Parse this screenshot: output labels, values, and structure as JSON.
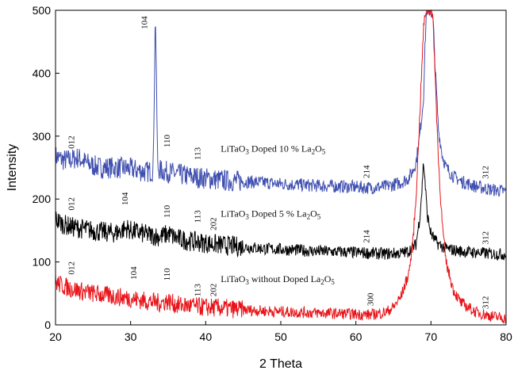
{
  "chart_data": {
    "type": "line",
    "title": "",
    "xlabel": "2 Theta",
    "ylabel": "Intensity",
    "xlim": [
      20,
      80
    ],
    "ylim": [
      0,
      500
    ],
    "xticks": [
      20,
      30,
      40,
      50,
      60,
      70,
      80
    ],
    "yticks": [
      0,
      100,
      200,
      300,
      400,
      500
    ],
    "grid": false,
    "legend": "none",
    "series": [
      {
        "label": {
          "base": "LiTaO",
          "sub1": "3",
          "mid": " Doped 10 % La",
          "sub2": "2",
          "end": "O",
          "sub3": "5"
        },
        "color": "#3f4fb0",
        "x": [
          20,
          21,
          22,
          23,
          24,
          25,
          26,
          28,
          30,
          32,
          33,
          33.3,
          33.6,
          34,
          35,
          36,
          38,
          40,
          42,
          45,
          48,
          50,
          52,
          55,
          58,
          60,
          62,
          64,
          66,
          67,
          67.5,
          68,
          68.5,
          69,
          69.2,
          69.4,
          69.6,
          69.8,
          70,
          70.3,
          70.6,
          71,
          71.5,
          72,
          73,
          74,
          76,
          78,
          80
        ],
        "y": [
          268,
          262,
          262,
          266,
          258,
          253,
          250,
          250,
          248,
          243,
          245,
          500,
          250,
          245,
          243,
          240,
          236,
          233,
          230,
          228,
          226,
          224,
          223,
          221,
          220,
          219,
          218,
          220,
          226,
          233,
          243,
          258,
          300,
          360,
          440,
          500,
          500,
          500,
          500,
          480,
          400,
          310,
          270,
          250,
          236,
          228,
          220,
          215,
          212
        ],
        "peaks": [
          {
            "hkl": "012",
            "x": 22.5,
            "y": 280
          },
          {
            "hkl": "104",
            "x": 32.2,
            "y": 470
          },
          {
            "hkl": "110",
            "x": 35.2,
            "y": 282
          },
          {
            "hkl": "113",
            "x": 39.3,
            "y": 262
          },
          {
            "hkl": "214",
            "x": 61.8,
            "y": 233
          },
          {
            "hkl": "312",
            "x": 77.6,
            "y": 232
          }
        ]
      },
      {
        "label": {
          "base": "LiTaO",
          "sub1": "3",
          "mid": " Doped 5 % La",
          "sub2": "2",
          "end": "O",
          "sub3": "5"
        },
        "color": "#000000",
        "x": [
          20,
          21,
          22,
          23,
          24,
          25,
          26,
          28,
          29.5,
          30,
          32,
          34,
          35,
          36,
          38,
          40,
          42,
          45,
          48,
          50,
          52,
          55,
          58,
          60,
          62,
          64,
          66,
          67,
          68,
          68.5,
          68.8,
          69,
          69.2,
          69.5,
          70,
          70.5,
          71,
          72,
          74,
          76,
          78,
          80
        ],
        "y": [
          168,
          160,
          156,
          154,
          152,
          150,
          148,
          146,
          154,
          150,
          144,
          140,
          145,
          138,
          133,
          130,
          127,
          124,
          121,
          120,
          119,
          117,
          116,
          115,
          114,
          113,
          114,
          117,
          128,
          170,
          215,
          260,
          230,
          175,
          145,
          135,
          128,
          121,
          117,
          115,
          113,
          112
        ],
        "peaks": [
          {
            "hkl": "012",
            "x": 22.5,
            "y": 182
          },
          {
            "hkl": "104",
            "x": 29.6,
            "y": 190
          },
          {
            "hkl": "110",
            "x": 35.2,
            "y": 170
          },
          {
            "hkl": "113",
            "x": 39.3,
            "y": 162
          },
          {
            "hkl": "202",
            "x": 41.4,
            "y": 150
          },
          {
            "hkl": "214",
            "x": 61.8,
            "y": 130
          },
          {
            "hkl": "312",
            "x": 77.6,
            "y": 128
          }
        ]
      },
      {
        "label": {
          "base": "LiTaO",
          "sub1": "3",
          "mid": " without Doped La",
          "sub2": "2",
          "end": "O",
          "sub3": "5"
        },
        "color": "#e8141a",
        "x": [
          20,
          21,
          22,
          23,
          24,
          25,
          26,
          28,
          30,
          32,
          34,
          35,
          36,
          38,
          40,
          42,
          45,
          48,
          50,
          52,
          55,
          58,
          60,
          62,
          64,
          65,
          66,
          67,
          67.5,
          68,
          68.5,
          69,
          69.3,
          69.6,
          70,
          70.3,
          70.6,
          71,
          71.5,
          72,
          73,
          74,
          76,
          78,
          80
        ],
        "y": [
          68,
          62,
          58,
          55,
          52,
          50,
          48,
          45,
          42,
          38,
          35,
          38,
          32,
          30,
          28,
          27,
          24,
          22,
          21,
          20,
          19,
          18,
          17,
          16,
          20,
          28,
          45,
          80,
          120,
          200,
          330,
          470,
          500,
          500,
          500,
          480,
          380,
          260,
          160,
          100,
          55,
          35,
          20,
          14,
          10
        ],
        "peaks": [
          {
            "hkl": "012",
            "x": 22.5,
            "y": 80
          },
          {
            "hkl": "104",
            "x": 30.8,
            "y": 72
          },
          {
            "hkl": "110",
            "x": 35.2,
            "y": 70
          },
          {
            "hkl": "113",
            "x": 39.3,
            "y": 45
          },
          {
            "hkl": "202",
            "x": 41.4,
            "y": 45
          },
          {
            "hkl": "300",
            "x": 62.3,
            "y": 30
          },
          {
            "hkl": "312",
            "x": 77.6,
            "y": 25
          }
        ]
      }
    ]
  }
}
